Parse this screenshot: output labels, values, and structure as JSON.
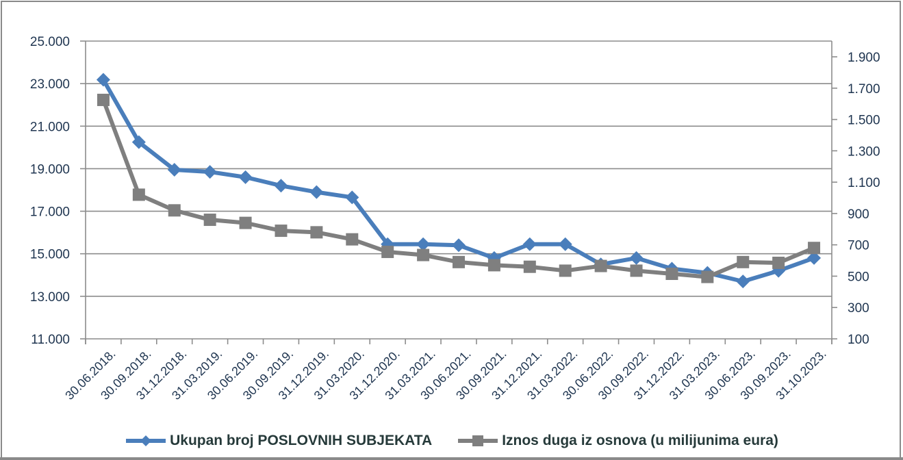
{
  "chart_data": {
    "type": "line",
    "title": "",
    "xlabel": "",
    "ylabel": "",
    "categories": [
      "30.06.2018.",
      "30.09.2018.",
      "31.12.2018.",
      "31.03.2019.",
      "30.06.2019.",
      "30.09.2019.",
      "31.12.2019.",
      "31.03.2020.",
      "31.12.2020.",
      "31.03.2021.",
      "30.06.2021.",
      "30.09.2021.",
      "31.12.2021.",
      "31.03.2022.",
      "30.06.2022.",
      "30.09.2022.",
      "31.12.2022.",
      "31.03.2023.",
      "30.06.2023.",
      "30.09.2023.",
      "31.10.2023."
    ],
    "series": [
      {
        "name": "Ukupan broj POSLOVNIH SUBJEKATA",
        "axis": "left",
        "color": "#4a7ebb",
        "marker": "diamond",
        "values": [
          23180,
          20250,
          18950,
          18850,
          18600,
          18200,
          17900,
          17650,
          15450,
          15450,
          15400,
          14800,
          15450,
          15450,
          14500,
          14800,
          14300,
          14100,
          13700,
          14200,
          14800
        ]
      },
      {
        "name": "Iznos duga iz osnova (u milijunima eura)",
        "axis": "right",
        "color": "#7f7f7f",
        "marker": "square",
        "values": [
          1625,
          1020,
          920,
          860,
          840,
          790,
          780,
          735,
          655,
          635,
          590,
          570,
          560,
          535,
          565,
          535,
          515,
          495,
          590,
          585,
          680
        ]
      }
    ],
    "y_left": {
      "ylim": [
        11000,
        25000
      ],
      "ticks": [
        25000,
        23000,
        21000,
        19000,
        17000,
        15000,
        13000,
        11000
      ],
      "tick_labels": [
        "25.000",
        "23.000",
        "21.000",
        "19.000",
        "17.000",
        "15.000",
        "13.000",
        "11.000"
      ]
    },
    "y_right": {
      "ylim": [
        100,
        1900
      ],
      "ticks": [
        1900,
        1700,
        1500,
        1300,
        1100,
        900,
        700,
        500,
        300,
        100
      ],
      "tick_labels": [
        "1.900",
        "1.700",
        "1.500",
        "1.300",
        "1.100",
        "900",
        "700",
        "500",
        "300",
        "100"
      ]
    },
    "grid": true,
    "legend_position": "bottom"
  },
  "legend": {
    "items": [
      {
        "label": "Ukupan broj POSLOVNIH SUBJEKATA",
        "color": "#4a7ebb",
        "marker": "diamond"
      },
      {
        "label": "Iznos duga iz osnova (u milijunima eura)",
        "color": "#7f7f7f",
        "marker": "square"
      }
    ]
  },
  "colors": {
    "grid": "#8c8c8c",
    "axis_text": "#1f3550",
    "frame": "#8a8a8a"
  }
}
